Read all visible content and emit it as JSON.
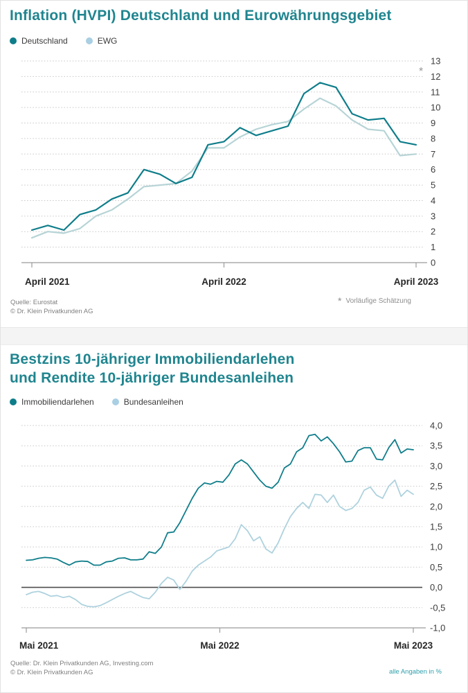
{
  "page": {
    "background": "#ffffff",
    "accent_color": "#1f858f",
    "divider_color": "#f4f4f4"
  },
  "charts": [
    {
      "title_lines": [
        "Inflation (HVPI) Deutschland und Eurowährungsgebiet"
      ],
      "legend": [
        {
          "label": "Deutschland",
          "color": "#0e7d8a"
        },
        {
          "label": "EWG",
          "color": "#a9cfe3"
        }
      ],
      "annotation": "*",
      "footnote_star": "*",
      "footnote_text": "Vorläufige Schätzung",
      "source_lines": [
        "Quelle: Eurostat",
        "© Dr. Klein Privatkunden AG"
      ],
      "x_labels": [
        "April 2021",
        "April 2022",
        "April 2023"
      ],
      "chart_data": {
        "type": "line",
        "frequency": "monthly",
        "x_range": [
          "April 2021",
          "April 2023"
        ],
        "ylim": [
          0,
          13
        ],
        "grid": "dotted-horizontal",
        "legend_position": "top-left",
        "yticks": [
          {
            "value": 13,
            "label": "13"
          },
          {
            "value": 12,
            "label": "12"
          },
          {
            "value": 11,
            "label": "11"
          },
          {
            "value": 10,
            "label": "10"
          },
          {
            "value": 9,
            "label": "9"
          },
          {
            "value": 8,
            "label": "8"
          },
          {
            "value": 7,
            "label": "7"
          },
          {
            "value": 6,
            "label": "6"
          },
          {
            "value": 5,
            "label": "5"
          },
          {
            "value": 4,
            "label": "4"
          },
          {
            "value": 3,
            "label": "3"
          },
          {
            "value": 2,
            "label": "2"
          },
          {
            "value": 1,
            "label": "1"
          },
          {
            "value": 0,
            "label": "0",
            "axis": true
          }
        ],
        "series": [
          {
            "name": "Deutschland",
            "color": "#0e7d8a",
            "values": [
              2.1,
              2.4,
              2.1,
              3.1,
              3.4,
              4.1,
              4.5,
              6.0,
              5.7,
              5.1,
              5.5,
              7.6,
              7.8,
              8.7,
              8.2,
              8.5,
              8.8,
              10.9,
              11.6,
              11.3,
              9.6,
              9.2,
              9.3,
              7.8,
              7.6
            ]
          },
          {
            "name": "EWG",
            "color": "#b7d4d6",
            "values": [
              1.6,
              2.0,
              1.9,
              2.2,
              3.0,
              3.4,
              4.1,
              4.9,
              5.0,
              5.1,
              5.9,
              7.4,
              7.4,
              8.1,
              8.6,
              8.9,
              9.1,
              9.9,
              10.6,
              10.1,
              9.2,
              8.6,
              8.5,
              6.9,
              7.0
            ]
          }
        ]
      }
    },
    {
      "title_lines": [
        "Bestzins 10-jähriger Immobiliendarlehen",
        "und Rendite 10-jähriger Bundesanleihen"
      ],
      "legend": [
        {
          "label": "Immobiliendarlehen",
          "color": "#0e7d8a"
        },
        {
          "label": "Bundesanleihen",
          "color": "#a9cfe3"
        }
      ],
      "footnote": "alle Angaben in %",
      "source_lines": [
        "Quelle: Dr. Klein Privatkunden AG, Investing.com",
        "© Dr. Klein Privatkunden AG"
      ],
      "x_labels": [
        "Mai 2021",
        "Mai 2022",
        "Mai 2023"
      ],
      "chart_data": {
        "type": "line",
        "frequency": "weekly",
        "x_range": [
          "Mai 2021",
          "Mai 2023"
        ],
        "ylim": [
          -1.0,
          4.0
        ],
        "grid": "dotted-horizontal",
        "legend_position": "top-left",
        "yticks": [
          {
            "value": 4.0,
            "label": "4,0"
          },
          {
            "value": 3.5,
            "label": "3,5"
          },
          {
            "value": 3.0,
            "label": "3,0"
          },
          {
            "value": 2.5,
            "label": "2,5"
          },
          {
            "value": 2.0,
            "label": "2,0"
          },
          {
            "value": 1.5,
            "label": "1,5"
          },
          {
            "value": 1.0,
            "label": "1,0"
          },
          {
            "value": 0.5,
            "label": "0,5"
          },
          {
            "value": 0.0,
            "label": "0,0",
            "emphasis": true
          },
          {
            "value": -0.5,
            "label": "-0,5"
          },
          {
            "value": -1.0,
            "label": "-1,0",
            "axis": true
          }
        ],
        "series": [
          {
            "name": "Immobiliendarlehen",
            "color": "#0e7d8a",
            "values": [
              0.67,
              0.68,
              0.72,
              0.74,
              0.73,
              0.7,
              0.62,
              0.55,
              0.63,
              0.65,
              0.64,
              0.55,
              0.55,
              0.63,
              0.65,
              0.72,
              0.73,
              0.68,
              0.68,
              0.7,
              0.88,
              0.84,
              1.0,
              1.35,
              1.37,
              1.6,
              1.9,
              2.2,
              2.45,
              2.58,
              2.55,
              2.62,
              2.6,
              2.78,
              3.05,
              3.15,
              3.05,
              2.85,
              2.65,
              2.5,
              2.45,
              2.6,
              2.95,
              3.05,
              3.35,
              3.45,
              3.75,
              3.78,
              3.62,
              3.72,
              3.55,
              3.35,
              3.1,
              3.12,
              3.38,
              3.45,
              3.45,
              3.17,
              3.15,
              3.45,
              3.65,
              3.32,
              3.42,
              3.4
            ]
          },
          {
            "name": "Bundesanleihen",
            "color": "#aed2de",
            "values": [
              -0.18,
              -0.12,
              -0.1,
              -0.15,
              -0.22,
              -0.2,
              -0.25,
              -0.22,
              -0.3,
              -0.42,
              -0.47,
              -0.48,
              -0.45,
              -0.38,
              -0.3,
              -0.22,
              -0.15,
              -0.1,
              -0.18,
              -0.25,
              -0.28,
              -0.12,
              0.1,
              0.25,
              0.18,
              -0.05,
              0.15,
              0.4,
              0.55,
              0.65,
              0.75,
              0.9,
              0.95,
              1.0,
              1.2,
              1.55,
              1.4,
              1.15,
              1.25,
              0.95,
              0.85,
              1.1,
              1.45,
              1.75,
              1.95,
              2.1,
              1.95,
              2.3,
              2.28,
              2.1,
              2.28,
              2.0,
              1.9,
              1.95,
              2.1,
              2.4,
              2.48,
              2.28,
              2.2,
              2.5,
              2.65,
              2.25,
              2.4,
              2.3
            ]
          }
        ]
      }
    }
  ]
}
